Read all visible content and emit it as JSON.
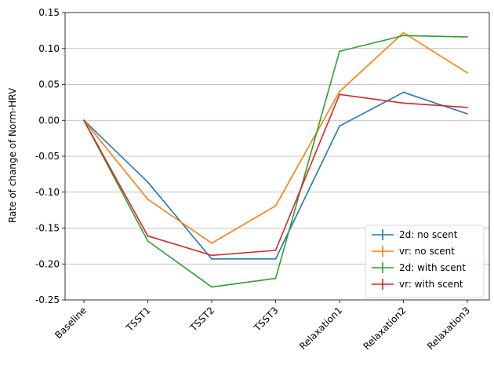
{
  "chart_data": {
    "type": "line",
    "title": "",
    "xlabel": "",
    "ylabel": "Rate of change of Norm-HRV",
    "categories": [
      "Baseline",
      "TSST1",
      "TSST2",
      "TSST3",
      "Relaxation1",
      "Relaxation2",
      "Relaxation3"
    ],
    "ylim": [
      -0.25,
      0.15
    ],
    "yticks": [
      "-0.25",
      "-0.20",
      "-0.15",
      "-0.10",
      "-0.05",
      "0.00",
      "0.05",
      "0.10",
      "0.15"
    ],
    "grid": "horizontal",
    "legend_position": "lower right",
    "series": [
      {
        "name": "2d: no scent",
        "color": "#1f77b4",
        "values": [
          0.0,
          -0.086,
          -0.193,
          -0.193,
          -0.008,
          0.039,
          0.009
        ]
      },
      {
        "name": "vr: no scent",
        "color": "#ff7f0e",
        "values": [
          0.0,
          -0.11,
          -0.171,
          -0.119,
          0.04,
          0.122,
          0.066
        ]
      },
      {
        "name": "2d: with scent",
        "color": "#2ca02c",
        "values": [
          0.0,
          -0.168,
          -0.232,
          -0.22,
          0.096,
          0.118,
          0.116
        ]
      },
      {
        "name": "vr: with scent",
        "color": "#d62728",
        "values": [
          0.0,
          -0.161,
          -0.188,
          -0.181,
          0.036,
          0.024,
          0.018
        ]
      }
    ]
  }
}
